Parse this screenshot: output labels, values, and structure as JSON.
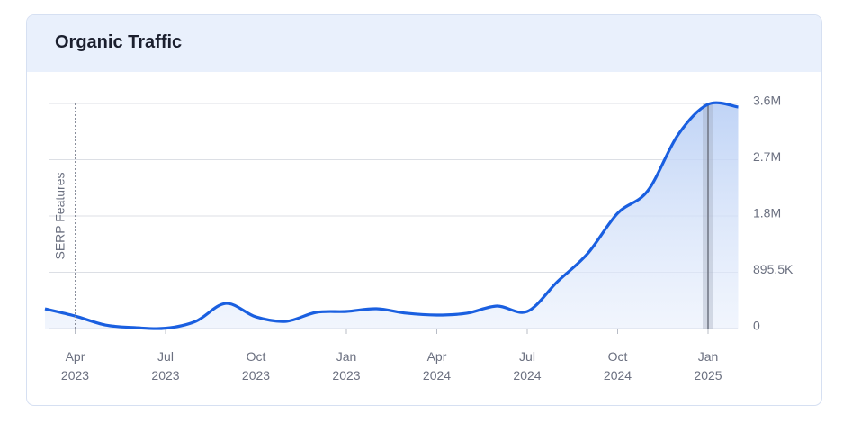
{
  "chart_data": {
    "type": "area",
    "title": "Organic Traffic",
    "annotation": "SERP Features",
    "annotation_index": 1,
    "highlight_index": 22,
    "color": "#1a5fe0",
    "categories": [
      null,
      "Apr 2023",
      null,
      null,
      "Jul 2023",
      null,
      null,
      "Oct 2023",
      null,
      null,
      "Jan 2023",
      null,
      null,
      "Apr 2024",
      null,
      null,
      "Jul 2024",
      null,
      null,
      "Oct 2024",
      null,
      null,
      "Jan 2025",
      null
    ],
    "values": [
      315000,
      200000,
      57000,
      14000,
      5000,
      115000,
      400000,
      185000,
      115000,
      258000,
      272000,
      315000,
      244000,
      215000,
      244000,
      358000,
      272000,
      745000,
      1190000,
      1834000,
      2192000,
      3080000,
      3568000,
      3525000
    ],
    "ylim": [
      0,
      3582000
    ],
    "yticks": [
      0,
      {
        "value": 895500,
        "label": "895.5K"
      },
      {
        "value": 1791000,
        "label": "1.8M"
      },
      {
        "value": 2686500,
        "label": "2.7M"
      },
      {
        "value": 3582000,
        "label": "3.6M"
      }
    ],
    "grid": true
  }
}
